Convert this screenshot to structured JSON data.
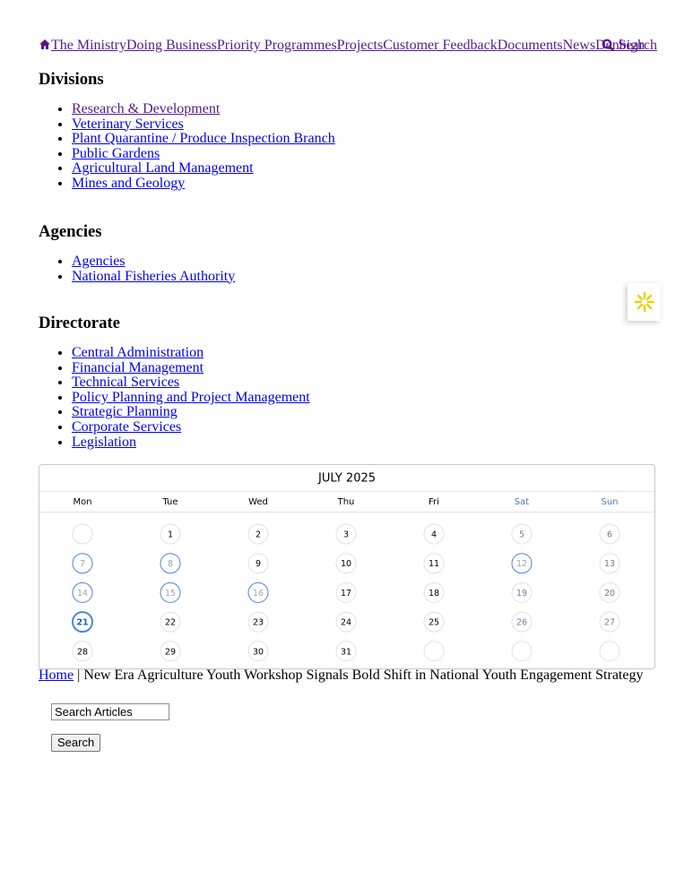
{
  "nav": {
    "links": [
      "The Ministry",
      "Doing Business",
      "Priority Programmes",
      "Projects",
      "Customer Feedback",
      "Documents",
      "News",
      "Denbigh"
    ],
    "search": "Search"
  },
  "sections": [
    {
      "heading": "Divisions",
      "links": [
        "Research & Development",
        "Veterinary Services",
        "Plant Quarantine / Produce Inspection Branch",
        "Public Gardens",
        "Agricultural Land Management",
        "Mines and Geology"
      ]
    },
    {
      "heading": "Agencies",
      "links": [
        "Agencies",
        "National Fisheries Authority"
      ]
    },
    {
      "heading": "Directorate",
      "links": [
        "Central Administration",
        "Financial Management",
        "Technical Services",
        "Policy Planning and Project Management",
        "Strategic Planning",
        "Corporate Services",
        "Legislation"
      ]
    }
  ],
  "calendar": {
    "title": "JULY 2025",
    "weekdays": [
      "Mon",
      "Tue",
      "Wed",
      "Thu",
      "Fri",
      "Sat",
      "Sun"
    ],
    "weeks": [
      [
        null,
        1,
        2,
        3,
        4,
        5,
        6
      ],
      [
        7,
        8,
        9,
        10,
        11,
        12,
        13
      ],
      [
        14,
        15,
        16,
        17,
        18,
        19,
        20
      ],
      [
        21,
        22,
        23,
        24,
        25,
        26,
        27
      ],
      [
        28,
        29,
        30,
        31,
        null,
        null,
        null
      ]
    ],
    "highlighted": [
      7,
      8,
      12,
      14,
      15,
      16,
      21
    ],
    "today": 21
  },
  "breadcrumb": {
    "home": "Home",
    "current": "New Era Agriculture Youth Workshop Signals Bold Shift in National Youth Engagement Strategy"
  },
  "search": {
    "placeholder": "Search Articles",
    "button": "Search"
  }
}
